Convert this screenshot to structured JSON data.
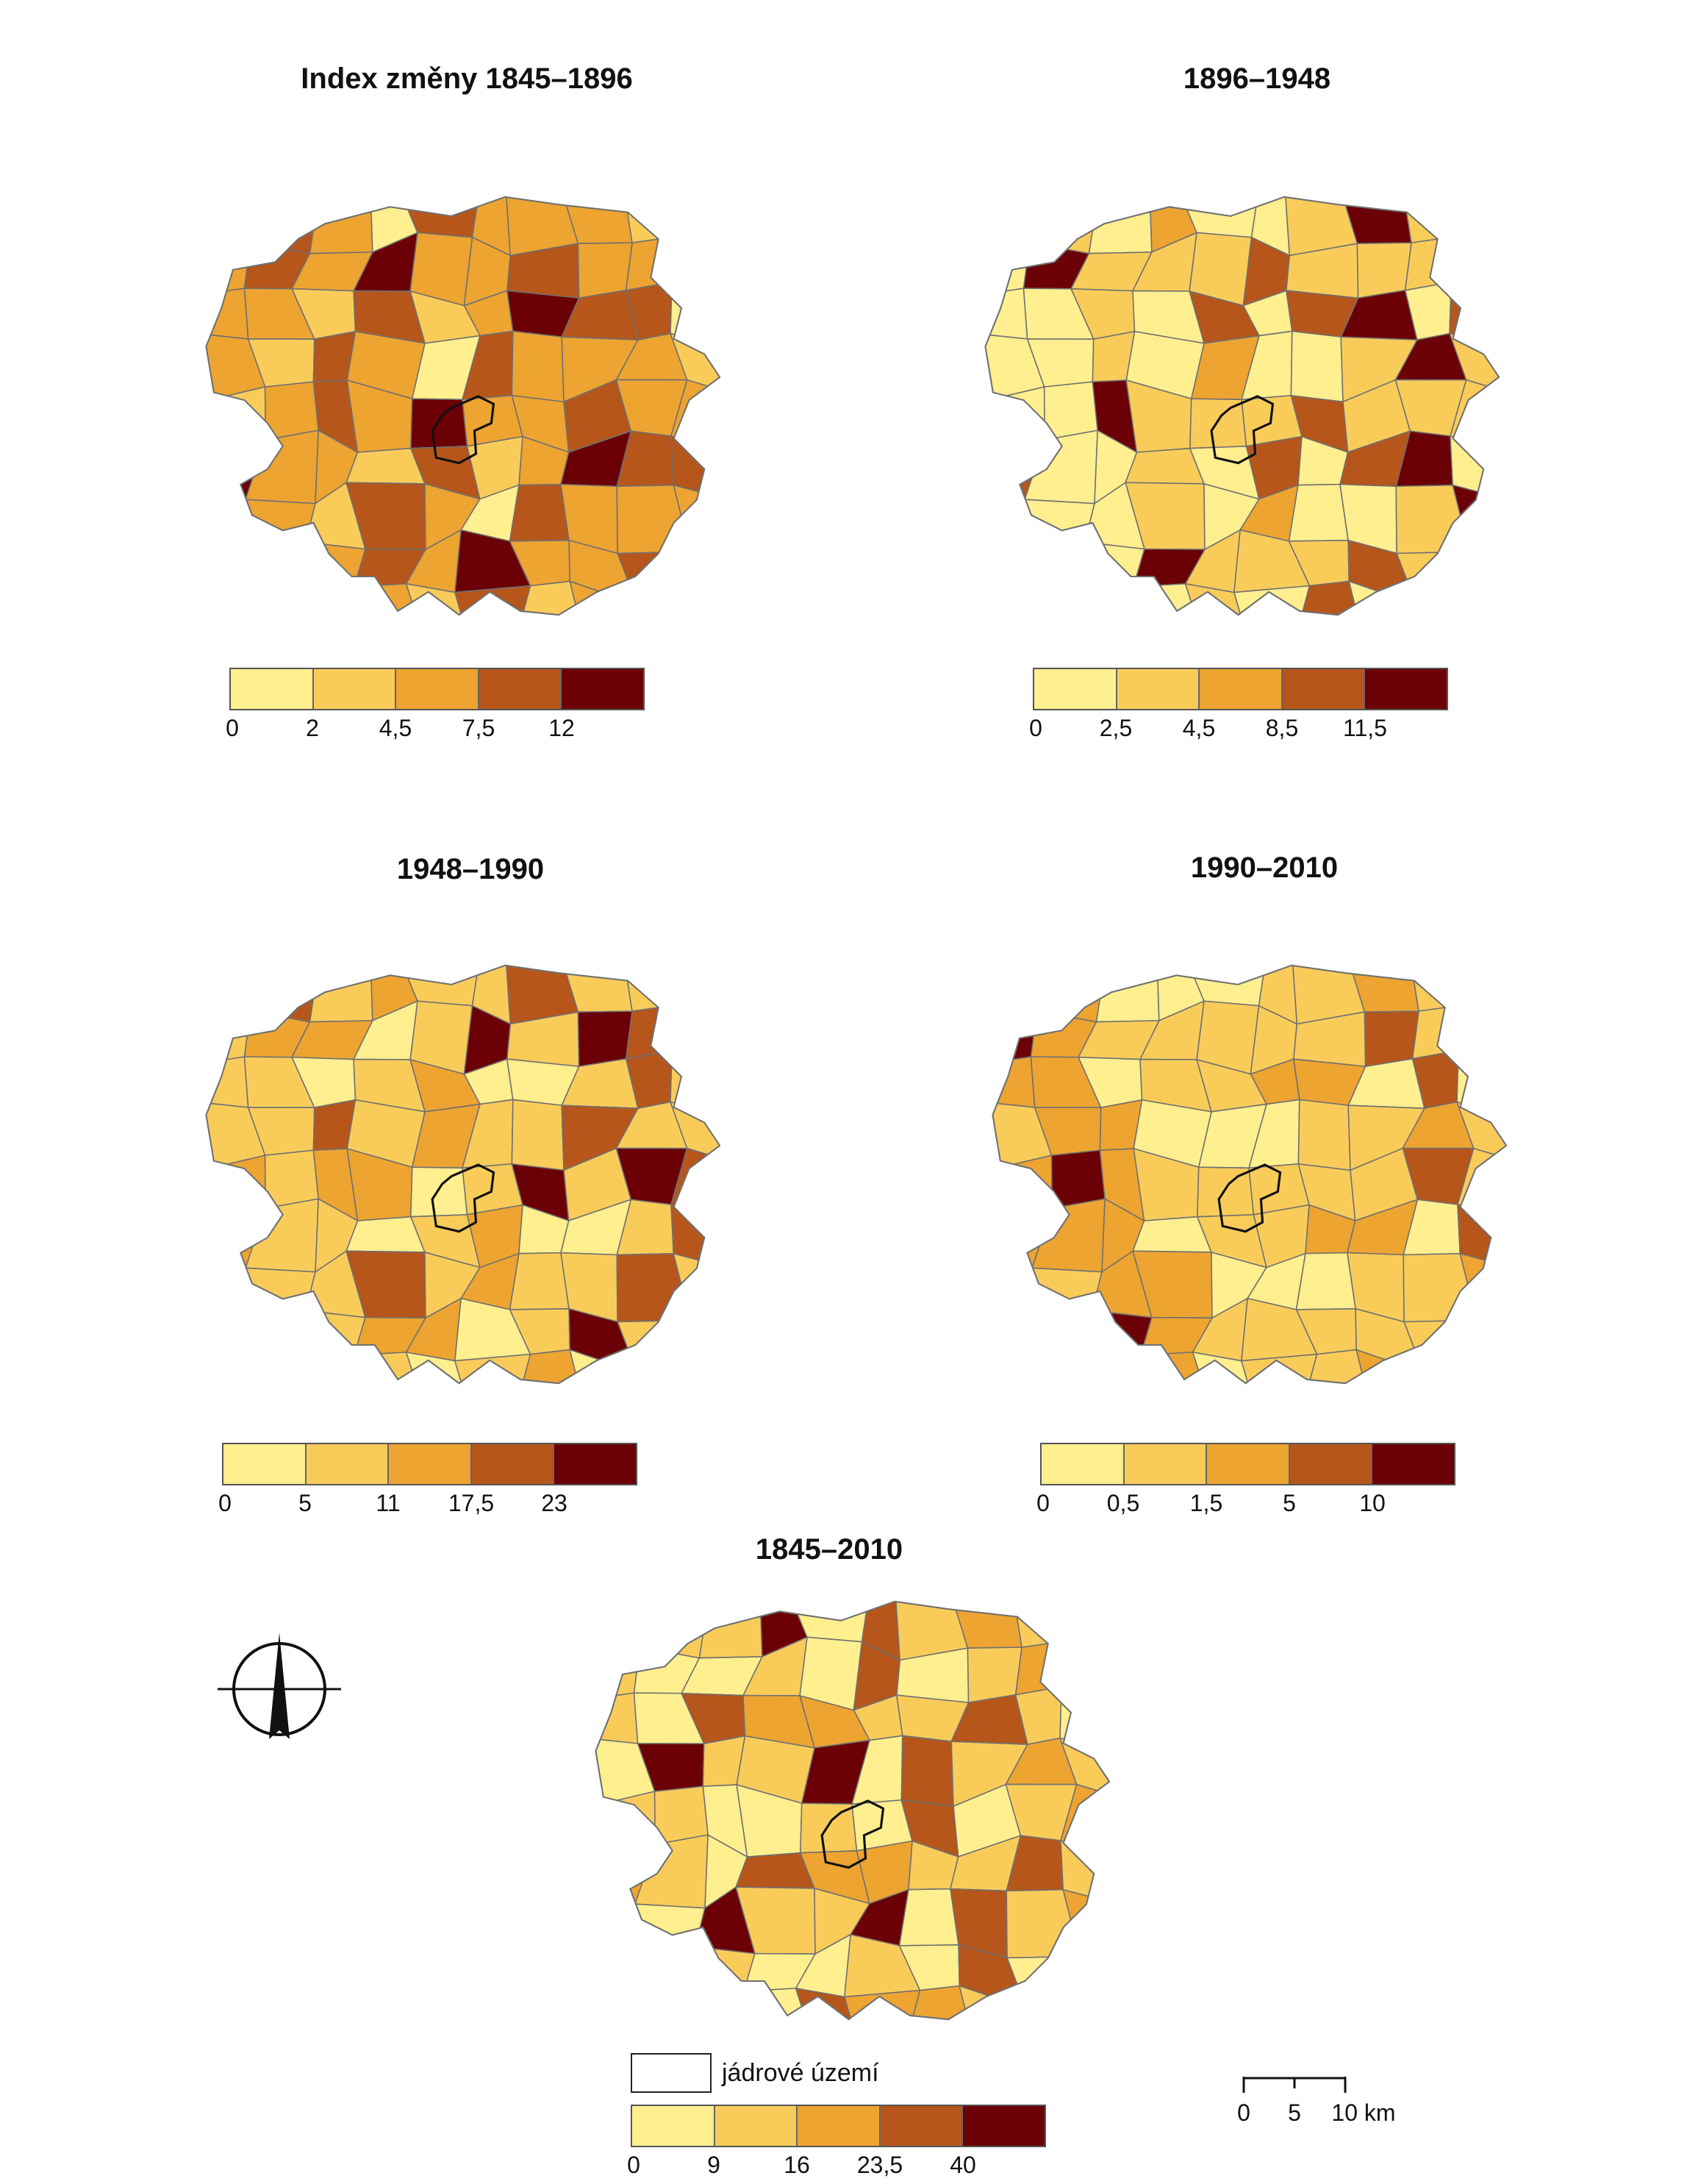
{
  "colors": {
    "classes": [
      "#ffef8f",
      "#f9cc5a",
      "#eda431",
      "#b6561b",
      "#6b0006"
    ],
    "boundary": "#707070",
    "core_outline": "#111111",
    "background": "#ffffff"
  },
  "panels": [
    {
      "id": "1845-1896",
      "title": "Index změny 1845–1896",
      "legend_breaks": [
        "0",
        "2",
        "4,5",
        "7,5",
        "12"
      ],
      "pattern": [
        1,
        2,
        2,
        3,
        1,
        0,
        2,
        3,
        4,
        2,
        1,
        2,
        2,
        3,
        2,
        4,
        1,
        2,
        3,
        2,
        2,
        0,
        2,
        3,
        4,
        2,
        1,
        2,
        3,
        2,
        2,
        3,
        4,
        2,
        0,
        2,
        1,
        2,
        3,
        2
      ]
    },
    {
      "id": "1896-1948",
      "title": "1896–1948",
      "legend_breaks": [
        "0",
        "2,5",
        "4,5",
        "8,5",
        "11,5"
      ],
      "pattern": [
        0,
        0,
        1,
        0,
        3,
        1,
        0,
        0,
        3,
        3,
        1,
        0,
        4,
        3,
        0,
        0,
        1,
        0,
        3,
        1,
        0,
        4,
        0,
        1,
        2,
        0,
        0,
        3,
        1,
        0,
        1,
        0,
        0,
        2,
        4,
        1,
        0,
        3,
        0,
        1
      ]
    },
    {
      "id": "1948-1990",
      "title": "1948–1990",
      "legend_breaks": [
        "0",
        "5",
        "11",
        "17,5",
        "23"
      ],
      "pattern": [
        1,
        1,
        0,
        2,
        3,
        1,
        1,
        2,
        3,
        1,
        2,
        1,
        4,
        3,
        1,
        1,
        2,
        1,
        3,
        1,
        1,
        2,
        1,
        0,
        2,
        1,
        4,
        2,
        1,
        1,
        0,
        2,
        1,
        3,
        1,
        1,
        2,
        1,
        0,
        1
      ]
    },
    {
      "id": "1990-2010",
      "title": "1990–2010",
      "legend_breaks": [
        "0",
        "0,5",
        "1,5",
        "5",
        "10"
      ],
      "pattern": [
        0,
        1,
        1,
        2,
        1,
        0,
        2,
        3,
        1,
        2,
        4,
        1,
        1,
        2,
        0,
        1,
        2,
        3,
        2,
        1,
        4,
        2,
        1,
        0,
        2,
        1,
        2,
        2,
        1,
        3,
        0,
        2,
        1,
        2,
        1,
        2,
        1,
        0,
        2,
        1
      ]
    },
    {
      "id": "1845-2010",
      "title": "1845–2010",
      "legend_breaks": [
        "0",
        "9",
        "16",
        "23,5",
        "40"
      ],
      "pattern": [
        0,
        0,
        1,
        3,
        1,
        0,
        1,
        3,
        3,
        2,
        1,
        0,
        4,
        3,
        1,
        2,
        1,
        0,
        3,
        1,
        1,
        2,
        2,
        1,
        3,
        0,
        1,
        2,
        1,
        1,
        0,
        2,
        1,
        4,
        1,
        2,
        1,
        0,
        1,
        2
      ]
    }
  ],
  "legend_core_label": "jádrové území",
  "scalebar": {
    "labels": [
      "0",
      "5",
      "10 km"
    ]
  },
  "north_arrow": {
    "icon": "north-arrow-icon"
  }
}
